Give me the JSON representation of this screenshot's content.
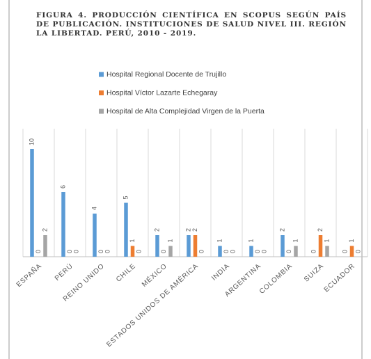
{
  "chart_data": {
    "type": "bar",
    "title": "FIGURA 4. PRODUCCIÓN CIENTÍFICA EN SCOPUS SEGÚN PAÍS DE PUBLICACIÓN. INSTITUCIONES DE SALUD NIVEL III. REGIÓN LA LIBERTAD. PERÚ, 2010 - 2019.",
    "categories": [
      "ESPAÑA",
      "PERÚ",
      "REINO UNIDO",
      "CHILE",
      "MÉXICO",
      "ESTADOS UNIDOS DE AMÉRICA",
      "INDIA",
      "ARGENTINA",
      "COLOMBIA",
      "SUIZA",
      "ECUADOR"
    ],
    "series": [
      {
        "name": "Hospital Regional Docente de Trujillo",
        "color": "#5b9bd5",
        "values": [
          10,
          6,
          4,
          5,
          2,
          2,
          1,
          1,
          2,
          0,
          0
        ]
      },
      {
        "name": "Hospital Víctor Lazarte Echegaray",
        "color": "#ed7d31",
        "values": [
          0,
          0,
          0,
          1,
          0,
          2,
          0,
          0,
          0,
          2,
          1
        ]
      },
      {
        "name": "Hospital de Alta Complejidad Virgen de la Puerta",
        "color": "#a5a5a5",
        "values": [
          2,
          0,
          0,
          0,
          1,
          0,
          0,
          0,
          1,
          1,
          0
        ]
      }
    ],
    "legend": "top",
    "grid": true
  }
}
